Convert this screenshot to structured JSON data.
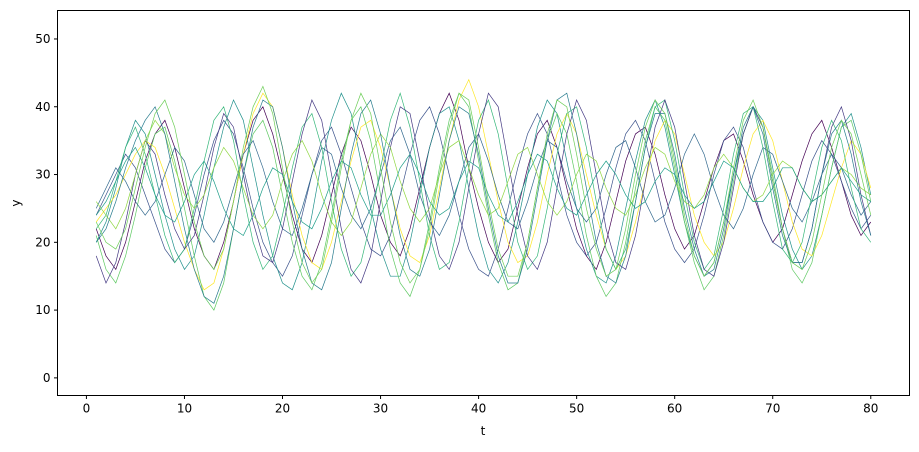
{
  "chart_data": {
    "type": "line",
    "title": "",
    "xlabel": "t",
    "ylabel": "y",
    "xlim": [
      -2.95,
      83.95
    ],
    "ylim": [
      -2.6,
      54.2
    ],
    "xticks": [
      0,
      10,
      20,
      30,
      40,
      50,
      60,
      70,
      80
    ],
    "yticks": [
      0,
      10,
      20,
      30,
      40,
      50
    ],
    "grid": false,
    "legend": "none",
    "colormap": "viridis",
    "x_start": 1,
    "x_end": 80,
    "series": [
      {
        "color": "#440154",
        "values": [
          22,
          18,
          16,
          20,
          26,
          32,
          36,
          38,
          34,
          28,
          22,
          18,
          16,
          20,
          26,
          33,
          38,
          40,
          36,
          30,
          24,
          19,
          17,
          21,
          27,
          33,
          37,
          35,
          30,
          24,
          20,
          18,
          22,
          28,
          34,
          39,
          42,
          38,
          31,
          25,
          20,
          17,
          19,
          25,
          31,
          36,
          38,
          34,
          28,
          22,
          18,
          16,
          20,
          26,
          32,
          36,
          37,
          33,
          27,
          22,
          19,
          21,
          26,
          31,
          35,
          36,
          32,
          27,
          23,
          20,
          22,
          27,
          32,
          36,
          38,
          34,
          29,
          24,
          21,
          23
        ]
      },
      {
        "color": "#3b528b",
        "values": [
          24,
          27,
          30,
          33,
          31,
          27,
          23,
          19,
          17,
          19,
          24,
          30,
          35,
          38,
          36,
          31,
          25,
          20,
          17,
          15,
          18,
          24,
          30,
          35,
          37,
          33,
          28,
          23,
          19,
          18,
          21,
          27,
          33,
          38,
          40,
          36,
          30,
          24,
          19,
          16,
          15,
          19,
          25,
          31,
          36,
          39,
          36,
          30,
          24,
          20,
          18,
          20,
          25,
          31,
          36,
          38,
          35,
          29,
          23,
          19,
          17,
          19,
          24,
          30,
          35,
          37,
          34,
          28,
          23,
          20,
          19,
          22,
          27,
          32,
          35,
          33,
          29,
          25,
          22,
          24
        ]
      },
      {
        "color": "#21918c",
        "values": [
          20,
          23,
          28,
          34,
          38,
          36,
          30,
          24,
          19,
          16,
          18,
          24,
          31,
          37,
          41,
          38,
          31,
          24,
          18,
          14,
          13,
          17,
          24,
          32,
          38,
          42,
          39,
          32,
          25,
          19,
          15,
          15,
          20,
          27,
          34,
          39,
          40,
          35,
          28,
          21,
          16,
          14,
          17,
          23,
          30,
          37,
          41,
          39,
          32,
          25,
          19,
          15,
          14,
          18,
          25,
          32,
          38,
          41,
          37,
          30,
          23,
          18,
          15,
          17,
          23,
          30,
          36,
          40,
          38,
          31,
          24,
          19,
          16,
          18,
          24,
          31,
          37,
          39,
          34,
          27
        ]
      },
      {
        "color": "#fde725",
        "values": [
          23,
          25,
          27,
          30,
          33,
          35,
          34,
          30,
          25,
          20,
          16,
          13,
          14,
          19,
          26,
          33,
          39,
          42,
          40,
          34,
          27,
          21,
          17,
          16,
          20,
          26,
          32,
          37,
          38,
          34,
          28,
          22,
          18,
          17,
          21,
          28,
          35,
          41,
          44,
          40,
          33,
          26,
          20,
          17,
          18,
          23,
          30,
          36,
          39,
          36,
          30,
          24,
          19,
          16,
          18,
          23,
          29,
          35,
          38,
          36,
          30,
          24,
          20,
          18,
          20,
          25,
          31,
          36,
          38,
          35,
          29,
          23,
          19,
          18,
          21,
          26,
          31,
          35,
          33,
          28
        ]
      },
      {
        "color": "#5ec962",
        "values": [
          21,
          16,
          14,
          18,
          24,
          31,
          36,
          37,
          32,
          25,
          18,
          12,
          10,
          14,
          22,
          30,
          36,
          38,
          34,
          27,
          20,
          15,
          13,
          17,
          24,
          32,
          38,
          40,
          35,
          27,
          19,
          14,
          12,
          16,
          23,
          31,
          38,
          42,
          40,
          32,
          24,
          17,
          13,
          14,
          20,
          28,
          35,
          39,
          36,
          29,
          21,
          15,
          12,
          14,
          20,
          28,
          35,
          40,
          38,
          31,
          23,
          17,
          13,
          15,
          21,
          29,
          36,
          40,
          37,
          30,
          22,
          16,
          14,
          17,
          24,
          31,
          37,
          38,
          33,
          26
        ]
      },
      {
        "color": "#31688e",
        "values": [
          25,
          28,
          31,
          29,
          26,
          24,
          26,
          30,
          34,
          32,
          27,
          22,
          20,
          23,
          28,
          33,
          35,
          31,
          26,
          22,
          21,
          25,
          30,
          34,
          33,
          28,
          24,
          22,
          25,
          30,
          35,
          37,
          33,
          27,
          23,
          21,
          24,
          29,
          34,
          36,
          32,
          27,
          23,
          22,
          26,
          31,
          35,
          34,
          29,
          25,
          23,
          25,
          30,
          34,
          35,
          31,
          26,
          23,
          24,
          28,
          33,
          36,
          33,
          28,
          24,
          22,
          25,
          30,
          34,
          33,
          29,
          25,
          23,
          26,
          30,
          33,
          31,
          27,
          24,
          26
        ]
      },
      {
        "color": "#35b779",
        "values": [
          22,
          24,
          29,
          34,
          37,
          33,
          27,
          21,
          17,
          19,
          25,
          32,
          38,
          40,
          35,
          27,
          20,
          16,
          18,
          24,
          31,
          37,
          39,
          34,
          26,
          19,
          15,
          17,
          23,
          31,
          38,
          42,
          37,
          29,
          21,
          16,
          17,
          23,
          31,
          38,
          41,
          36,
          28,
          20,
          16,
          18,
          25,
          33,
          39,
          40,
          34,
          26,
          19,
          16,
          19,
          26,
          34,
          40,
          41,
          35,
          27,
          20,
          16,
          18,
          25,
          33,
          39,
          40,
          34,
          26,
          19,
          17,
          20,
          27,
          34,
          38,
          35,
          28,
          22,
          20
        ]
      },
      {
        "color": "#443983",
        "values": [
          18,
          14,
          17,
          23,
          30,
          35,
          33,
          27,
          22,
          19,
          21,
          27,
          34,
          39,
          37,
          30,
          23,
          18,
          17,
          22,
          29,
          36,
          41,
          38,
          30,
          22,
          16,
          14,
          18,
          26,
          34,
          40,
          39,
          32,
          24,
          18,
          16,
          20,
          28,
          36,
          42,
          40,
          32,
          24,
          18,
          16,
          20,
          28,
          36,
          41,
          38,
          30,
          22,
          17,
          16,
          21,
          29,
          37,
          41,
          37,
          29,
          21,
          16,
          15,
          20,
          28,
          36,
          40,
          37,
          29,
          22,
          17,
          17,
          22,
          30,
          37,
          40,
          35,
          27,
          21
        ]
      },
      {
        "color": "#90d743",
        "values": [
          26,
          24,
          22,
          25,
          30,
          35,
          38,
          36,
          31,
          27,
          25,
          27,
          31,
          34,
          32,
          28,
          24,
          22,
          24,
          29,
          33,
          35,
          32,
          27,
          23,
          21,
          23,
          28,
          33,
          36,
          34,
          29,
          25,
          23,
          25,
          30,
          34,
          35,
          31,
          27,
          24,
          25,
          29,
          33,
          34,
          30,
          26,
          24,
          26,
          30,
          33,
          32,
          28,
          25,
          24,
          27,
          31,
          34,
          33,
          29,
          26,
          25,
          27,
          31,
          33,
          31,
          28,
          26,
          27,
          30,
          32,
          31,
          28,
          26,
          27,
          29,
          31,
          30,
          28,
          27
        ]
      },
      {
        "color": "#287c8e",
        "values": [
          20,
          22,
          26,
          31,
          35,
          38,
          40,
          36,
          29,
          22,
          16,
          12,
          11,
          15,
          22,
          30,
          37,
          41,
          40,
          34,
          26,
          19,
          14,
          13,
          17,
          25,
          33,
          39,
          41,
          36,
          28,
          21,
          16,
          15,
          19,
          27,
          35,
          40,
          39,
          33,
          25,
          18,
          14,
          14,
          19,
          27,
          35,
          41,
          42,
          36,
          28,
          20,
          15,
          14,
          18,
          26,
          34,
          39,
          39,
          33,
          25,
          19,
          15,
          16,
          22,
          30,
          37,
          40,
          36,
          28,
          21,
          17,
          17,
          22,
          30,
          36,
          38,
          33,
          26,
          21
        ]
      },
      {
        "color": "#1f9e89",
        "values": [
          24,
          26,
          29,
          32,
          34,
          31,
          27,
          24,
          23,
          26,
          30,
          32,
          29,
          25,
          22,
          21,
          24,
          28,
          31,
          30,
          26,
          23,
          22,
          25,
          29,
          32,
          31,
          27,
          24,
          24,
          27,
          31,
          33,
          30,
          26,
          24,
          25,
          29,
          32,
          31,
          27,
          24,
          23,
          26,
          30,
          33,
          32,
          28,
          25,
          24,
          27,
          30,
          32,
          30,
          27,
          25,
          26,
          29,
          31,
          30,
          27,
          25,
          26,
          29,
          32,
          31,
          28,
          26,
          26,
          28,
          31,
          31,
          28,
          26,
          27,
          29,
          31,
          29,
          27,
          26
        ]
      },
      {
        "color": "#6ece58",
        "values": [
          23,
          20,
          19,
          22,
          28,
          34,
          39,
          41,
          37,
          30,
          23,
          18,
          16,
          19,
          26,
          34,
          40,
          43,
          39,
          31,
          23,
          17,
          14,
          16,
          23,
          31,
          38,
          42,
          39,
          31,
          23,
          17,
          14,
          16,
          22,
          30,
          37,
          42,
          41,
          34,
          26,
          19,
          15,
          15,
          20,
          28,
          36,
          41,
          40,
          33,
          25,
          19,
          15,
          16,
          22,
          30,
          37,
          41,
          39,
          32,
          24,
          18,
          15,
          17,
          23,
          31,
          38,
          41,
          37,
          29,
          22,
          17,
          16,
          20,
          27,
          34,
          38,
          36,
          30,
          24
        ]
      }
    ]
  }
}
